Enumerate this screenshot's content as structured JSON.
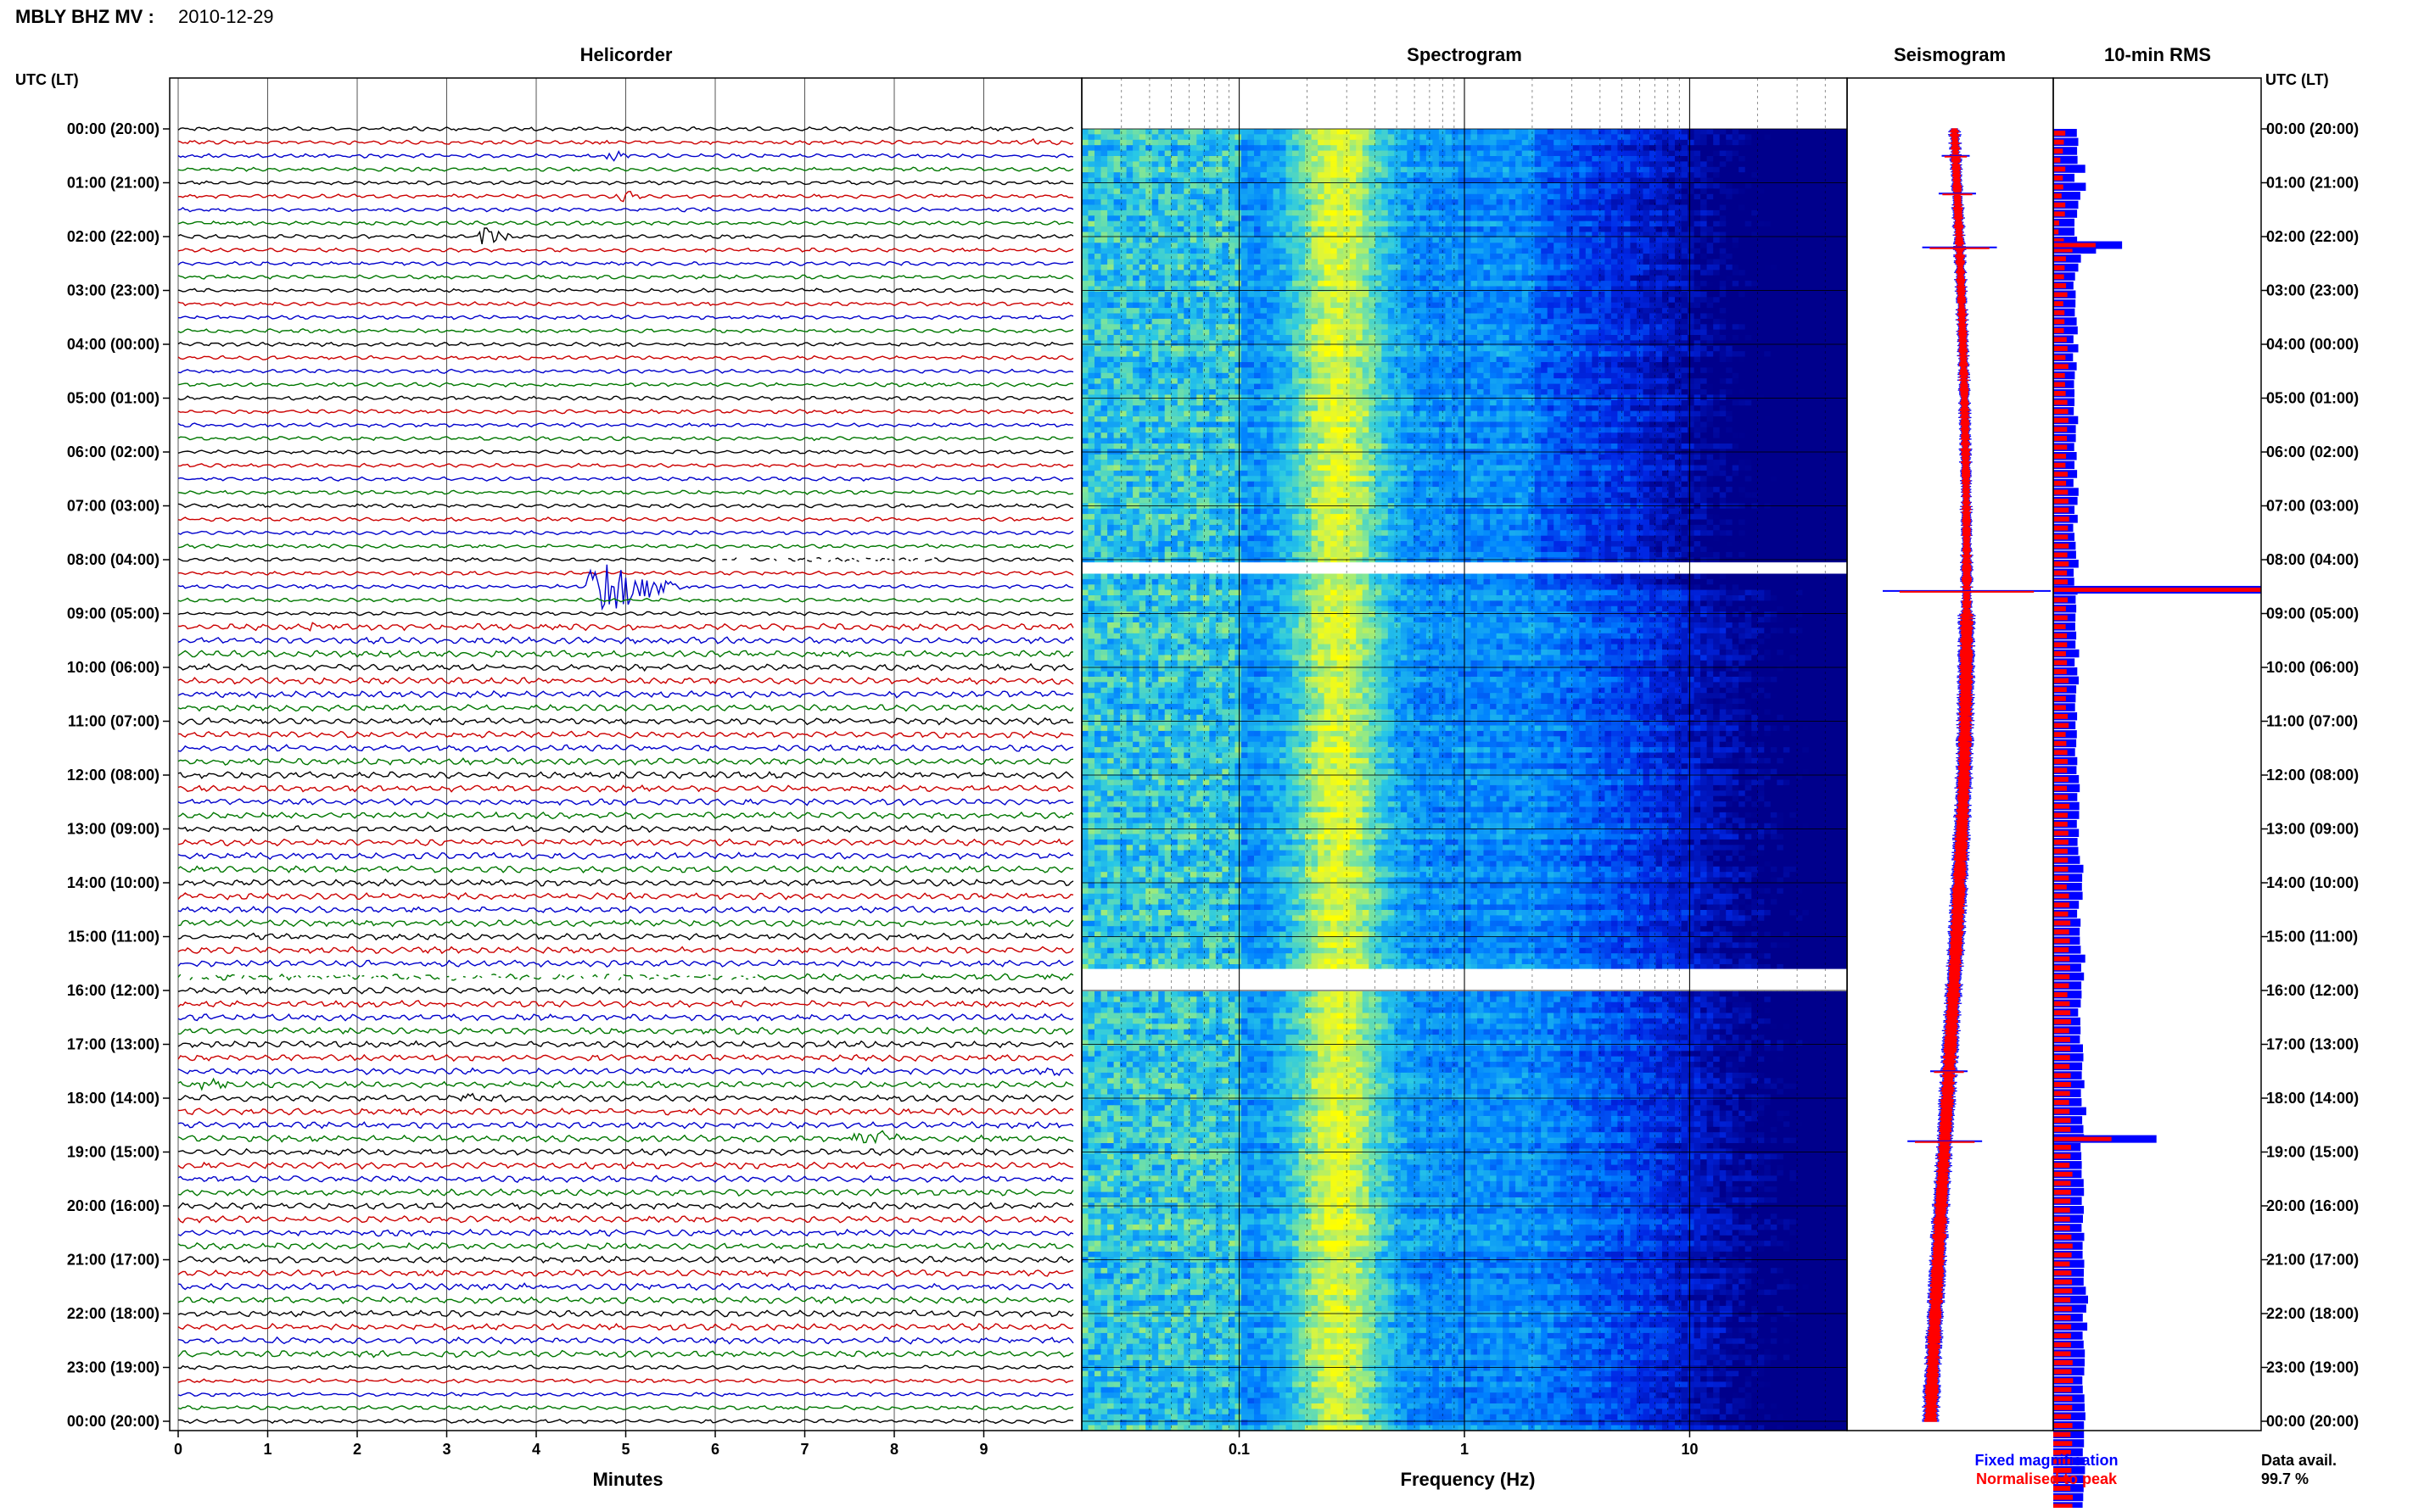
{
  "header": {
    "station": "MBLY BHZ MV :",
    "date": "2010-12-29"
  },
  "panels": {
    "helicorder": "Helicorder",
    "spectrogram": "Spectrogram",
    "seismogram": "Seismogram",
    "rms": "10-min RMS"
  },
  "time_axis_label": "UTC (LT)",
  "footer": {
    "minutes_label": "Minutes",
    "frequency_label": "Frequency (Hz)",
    "legend_fixed": "Fixed magnification",
    "legend_normalised": "Normalised to peak",
    "data_avail_label": "Data avail.",
    "data_avail_value": "99.7 %"
  },
  "colors": {
    "trace_cycle": [
      "#000000",
      "#cc0000",
      "#0000cc",
      "#007700"
    ],
    "fixed": "#0000ff",
    "normalised": "#ff0000",
    "spectrogram_low": "#00008f",
    "spectrogram_high": "#ffff00"
  },
  "chart_data": [
    {
      "type": "line",
      "name": "helicorder",
      "title": "Helicorder",
      "xlabel": "Minutes",
      "xlim": [
        0,
        10
      ],
      "x_ticks": [
        0,
        1,
        2,
        3,
        4,
        5,
        6,
        7,
        8,
        9
      ],
      "rows_per_hour": 4,
      "time_ticks": [
        "00:00 (20:00)",
        "01:00 (21:00)",
        "02:00 (22:00)",
        "03:00 (23:00)",
        "04:00 (00:00)",
        "05:00 (01:00)",
        "06:00 (02:00)",
        "07:00 (03:00)",
        "08:00 (04:00)",
        "09:00 (05:00)",
        "10:00 (06:00)",
        "11:00 (07:00)",
        "12:00 (08:00)",
        "13:00 (09:00)",
        "14:00 (10:00)",
        "15:00 (11:00)",
        "16:00 (12:00)",
        "17:00 (13:00)",
        "18:00 (14:00)",
        "19:00 (15:00)",
        "20:00 (16:00)",
        "21:00 (17:00)",
        "22:00 (18:00)",
        "23:00 (19:00)",
        "00:00 (20:00)"
      ],
      "events": [
        {
          "hour": 0.3,
          "minute": 4.6,
          "duration": 0.3,
          "amplitude": 0.5
        },
        {
          "hour": 0.6,
          "minute": 4.75,
          "duration": 0.4,
          "amplitude": 0.9
        },
        {
          "hour": 0.2,
          "minute": 9.5,
          "duration": 0.5,
          "amplitude": 0.4
        },
        {
          "hour": 1.15,
          "minute": 4.9,
          "duration": 0.4,
          "amplitude": 1.2
        },
        {
          "hour": 2.1,
          "minute": 3.35,
          "duration": 0.5,
          "amplitude": 2.2
        },
        {
          "hour": 8.55,
          "minute": 4.5,
          "duration": 1.5,
          "amplitude": 4.8
        },
        {
          "hour": 9.15,
          "minute": 1.4,
          "duration": 0.7,
          "amplitude": 0.6
        },
        {
          "hour": 14.6,
          "minute": 8.1,
          "duration": 0.4,
          "amplitude": 0.4
        },
        {
          "hour": 15.75,
          "minute": 9.6,
          "duration": 0.4,
          "amplitude": 0.4
        },
        {
          "hour": 17.65,
          "minute": 0.1,
          "duration": 0.7,
          "amplitude": 0.9
        },
        {
          "hour": 17.5,
          "minute": 9.7,
          "duration": 0.3,
          "amplitude": 0.6
        },
        {
          "hour": 17.95,
          "minute": 3.1,
          "duration": 0.8,
          "amplitude": 0.9
        },
        {
          "hour": 18.65,
          "minute": 7.5,
          "duration": 0.9,
          "amplitude": 1.7
        }
      ],
      "gaps": [
        {
          "hour": 8.0,
          "minute_from": 6.0,
          "minute_to": 8.5
        },
        {
          "hour": 15.7,
          "minute_from": 0.0,
          "minute_to": 6.5
        }
      ]
    },
    {
      "type": "heatmap",
      "name": "spectrogram",
      "title": "Spectrogram",
      "xlabel": "Frequency (Hz)",
      "x_scale": "log",
      "xlim": [
        0.02,
        50
      ],
      "x_tick_labels": [
        0.1,
        1,
        10
      ],
      "hours": 24,
      "peak_band_hz": [
        0.2,
        0.35
      ],
      "white_gap_hours": [
        [
          8.05,
          8.2
        ],
        [
          15.6,
          15.9
        ]
      ]
    },
    {
      "type": "line",
      "name": "seismogram",
      "title": "Seismogram",
      "series": [
        {
          "name": "Fixed magnification",
          "color": "#0000ff"
        },
        {
          "name": "Normalised to peak",
          "color": "#ff0000"
        }
      ],
      "spikes": [
        {
          "hour": 0.5,
          "half_width": 0.3
        },
        {
          "hour": 1.2,
          "half_width": 0.4
        },
        {
          "hour": 2.2,
          "half_width": 0.8
        },
        {
          "hour": 8.58,
          "half_width": 1.8
        },
        {
          "hour": 17.5,
          "half_width": 0.4
        },
        {
          "hour": 18.8,
          "half_width": 0.8
        }
      ]
    },
    {
      "type": "bar",
      "name": "rms",
      "title": "10-min RMS",
      "bins_per_hour": 6,
      "fixed": [
        1.16,
        1.23,
        1.17,
        1.19,
        1.57,
        1.04,
        1.6,
        1.33,
        1.23,
        1.17,
        1.04,
        1.04,
        1.17,
        2.1,
        1.36,
        1.23,
        1.07,
        0.99,
        1.1,
        1.09,
        1.06,
        1.15,
        1.2,
        0.99,
        1.23,
        0.97,
        1.15,
        1.06,
        1.02,
        1.04,
        1.04,
        1.01,
        1.22,
        1.11,
        1.11,
        1.03,
        1.15,
        1.04,
        1.17,
        0.99,
        1.24,
        1.19,
        1.04,
        1.2,
        0.98,
        1.04,
        1.1,
        1.12,
        1.24,
        1.0,
        1.03,
        1.19,
        1.1,
        1.13,
        1.09,
        1.08,
        1.13,
        1.09,
        1.27,
        1.05,
        1.18,
        1.25,
        1.13,
        1.1,
        1.07,
        1.17,
        1.09,
        1.16,
        1.13,
        1.07,
        1.18,
        1.14,
        1.26,
        1.3,
        1.18,
        1.28,
        1.27,
        1.16,
        1.26,
        1.19,
        1.23,
        1.31,
        1.48,
        1.42,
        1.41,
        1.44,
        1.26,
        1.17,
        1.34,
        1.3,
        1.31,
        1.35,
        1.57,
        1.37,
        1.51,
        1.38,
        1.39,
        1.35,
        1.22,
        1.33,
        1.34,
        1.31,
        1.46,
        1.48,
        1.42,
        1.4,
        1.53,
        1.36,
        1.39,
        1.62,
        1.42,
        1.48,
        1.51,
        1.34,
        1.38,
        1.4,
        1.39,
        1.49,
        1.51,
        1.4,
        1.5,
        1.46,
        1.39,
        1.52,
        1.44,
        1.44,
        1.52,
        1.5,
        1.49,
        1.6,
        1.71,
        1.62,
        1.45,
        1.67,
        1.44,
        1.49,
        1.55,
        1.54,
        1.52,
        1.43,
        1.45,
        1.53,
        1.54,
        1.58,
        1.51,
        1.51,
        1.51,
        1.45,
        1.55,
        1.56,
        1.48,
        1.49,
        1.47,
        1.44,
        1.52,
        1.47,
        1.39,
        1.42,
        1.41,
        1.54,
        1.48,
        1.39,
        1.46,
        1.49,
        1.5,
        1.45,
        1.48,
        1.42,
        1.43,
        1.36,
        1.38,
        1.4,
        1.34,
        1.49,
        1.4,
        1.46,
        1.34,
        1.41,
        1.42,
        1.44,
        1.39,
        1.42,
        1.33,
        1.4,
        1.36,
        1.34,
        1.43,
        1.36,
        1.36,
        1.45,
        1.37,
        1.28,
        1.26,
        1.33,
        1.33,
        1.28,
        1.33,
        1.32,
        1.29,
        1.22,
        1.34,
        1.34,
        1.41,
        1.45,
        1.59,
        1.49,
        1.57,
        1.69,
        1.59,
        1.64,
        1.48,
        1.62,
        1.67,
        1.62,
        1.58,
        1.58,
        1.65,
        1.5,
        1.58,
        1.63,
        1.61,
        1.61,
        1.54,
        1.56,
        1.49,
        1.43,
        1.55,
        1.53,
        1.49,
        1.57,
        1.56,
        1.53,
        1.48,
        1.6,
        1.5,
        1.55,
        1.57,
        1.57,
        1.46,
        1.54,
        1.47,
        1.44,
        1.6,
        1.57,
        1.47,
        1.57,
        1.58,
        1.39,
        1.53,
        1.52,
        1.61,
        1.49,
        1.52,
        1.48,
        1.4,
        1.3,
        1.43,
        1.46,
        1.55,
        1.47,
        1.49,
        1.45,
        1.62,
        1.54,
        1.61,
        1.6,
        1.77,
        1.62,
        1.73,
        1.61,
        1.8,
        1.66,
        1.9,
        1.94,
        1.72,
        1.71,
        1.74,
        1.8,
        1.68,
        1.74,
        1.65,
        1.87,
        2.2,
        2.6,
        1.71,
        1.6,
        1.62,
        1.64,
        1.5,
        1.72,
        1.72,
        1.68,
        1.62,
        1.55,
        1.7,
        1.71,
        1.54,
        1.79,
        1.6,
        1.53,
        1.53,
        1.64,
        1.44,
        1.6,
        1.55,
        1.7,
        1.48,
        1.66,
        1.51,
        1.58,
        1.55,
        1.41,
        1.52,
        1.45,
        1.46,
        1.54,
        1.38,
        1.42,
        1.42,
        1.29,
        1.21,
        1.23,
        1.26,
        1.22,
        1.27,
        1.2,
        1.12,
        1.25,
        1.27,
        1.16,
        1.23,
        1.11
      ],
      "normalised": [
        0.59,
        0.52,
        0.47,
        0.35,
        0.59,
        0.47,
        0.49,
        0.41,
        0.59,
        0.57,
        0.29,
        0.26,
        0.52,
        0.94,
        0.62,
        0.56,
        0.53,
        0.63,
        0.69,
        0.49,
        0.55,
        0.55,
        0.52,
        0.66,
        0.7,
        0.6,
        0.74,
        0.57,
        0.58,
        0.61,
        0.69,
        0.73,
        0.74,
        0.68,
        0.67,
        0.68,
        0.63,
        0.6,
        0.71,
        0.63,
        0.72,
        0.74,
        0.76,
        0.78,
        0.72,
        0.72,
        0.76,
        0.69,
        0.76,
        0.67,
        0.71,
        0.67,
        0.71,
        0.62,
        0.7,
        0.61,
        0.67,
        0.68,
        0.62,
        0.67,
        0.66,
        0.75,
        0.66,
        0.62,
        0.62,
        0.71,
        0.76,
        0.61,
        0.64,
        0.69,
        0.71,
        0.68,
        0.74,
        0.67,
        0.72,
        0.79,
        0.71,
        0.7,
        0.74,
        0.74,
        0.71,
        0.72,
        0.73,
        0.76,
        0.66,
        0.77,
        0.79,
        0.73,
        0.84,
        0.78,
        0.81,
        0.76,
        0.8,
        0.83,
        0.8,
        0.77,
        0.69,
        0.81,
        0.84,
        0.87,
        0.78,
        0.83,
        0.84,
        0.82,
        0.8,
        0.86,
        0.87,
        0.82,
        0.78,
        0.8,
        0.86,
        0.85,
        0.82,
        0.87,
        0.85,
        0.8,
        0.94,
        0.86,
        0.87,
        0.85,
        0.82,
        0.82,
        0.82,
        0.89,
        0.95,
        0.9,
        0.81,
        0.89,
        0.92,
        0.93,
        0.84,
        0.91,
        0.86,
        0.88,
        0.87,
        0.87,
        0.86,
        0.95,
        0.9,
        0.97,
        0.89,
        0.93,
        0.93,
        0.87,
        0.94,
        0.85,
        0.93,
        0.87,
        0.94,
        0.89,
        0.91,
        0.84,
        0.96,
        0.94,
        0.92,
        0.88,
        0.88,
        0.88,
        0.91,
        0.87,
        0.91,
        0.85,
        0.85,
        0.92,
        0.87,
        0.9,
        0.8,
        0.89,
        0.85,
        0.86,
        0.84,
        0.79,
        0.83,
        0.86,
        0.88,
        0.76,
        0.86,
        0.79,
        0.86,
        0.8,
        0.78,
        0.82,
        0.77,
        0.77,
        0.76,
        0.73,
        0.7,
        0.81,
        0.8,
        0.7,
        0.79,
        0.7,
        0.71,
        0.71,
        0.72,
        0.79,
        0.74,
        0.67,
        0.71,
        0.73,
        0.71,
        0.79,
        0.77,
        0.78,
        0.85,
        0.79,
        0.87,
        0.87,
        0.87,
        0.86,
        0.84,
        0.86,
        0.86,
        0.93,
        0.88,
        0.88,
        0.88,
        0.86,
        0.88,
        0.93,
        0.96,
        0.82,
        0.93,
        0.86,
        0.79,
        0.88,
        0.91,
        0.88,
        0.92,
        0.91,
        0.92,
        0.82,
        0.86,
        0.89,
        0.91,
        0.88,
        0.89,
        0.88,
        0.95,
        0.86,
        0.87,
        0.89,
        0.85,
        0.86,
        0.85,
        0.93,
        0.88,
        0.87,
        0.85,
        0.83,
        0.87,
        0.9,
        0.93,
        0.85,
        0.77,
        0.94,
        0.83,
        0.86,
        0.96,
        0.9,
        0.84,
        0.93,
        0.96,
        0.96,
        0.93,
        0.91,
        0.98,
        1.01,
        1.03,
        1.04,
        1.05,
        0.95,
        1.02,
        0.99,
        0.92,
        1.01,
        1.0,
        0.93,
        1.02,
        1.04,
        1.0,
        1.2,
        1.18,
        0.95,
        0.86,
        0.99,
        0.96,
        0.94,
        0.93,
        0.9,
        0.94,
        0.94,
        0.94,
        0.95,
        0.9,
        0.95,
        0.83,
        0.88,
        0.89,
        0.82,
        0.86,
        0.85,
        0.82,
        0.86,
        0.82,
        0.8,
        0.82,
        0.82,
        0.84,
        0.87,
        0.81,
        0.8,
        0.84,
        0.76,
        0.77,
        0.83,
        0.8,
        0.74,
        0.79,
        0.72,
        0.76,
        0.76,
        0.7,
        0.75,
        0.74,
        0.71,
        0.78,
        0.71,
        0.68,
        0.65,
        0.68
      ],
      "spikes": [
        {
          "hour": 2.15,
          "fixed": 2.6,
          "normalised": 1.6
        },
        {
          "hour": 8.55,
          "fixed": 8.5,
          "normalised": 8.5
        },
        {
          "hour": 18.75,
          "fixed": 3.9,
          "normalised": 2.2
        }
      ]
    }
  ]
}
